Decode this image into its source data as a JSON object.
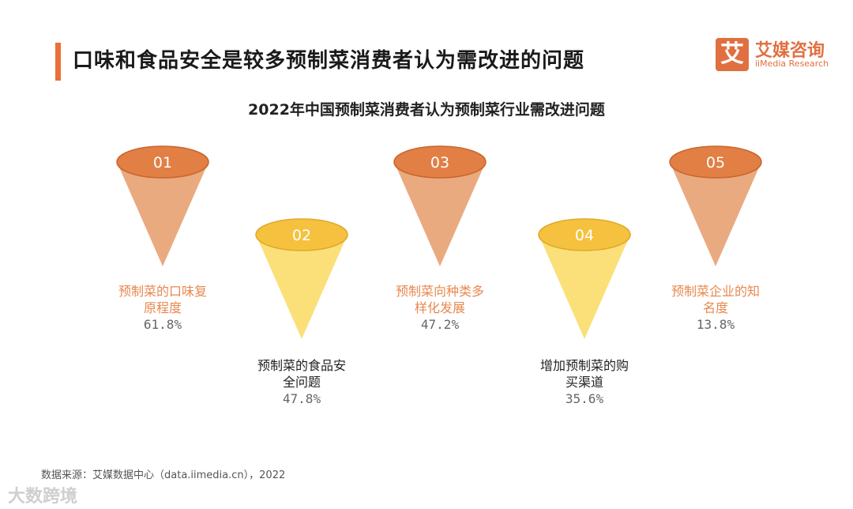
{
  "header": {
    "title": "口味和食品安全是较多预制菜消费者认为需改进的问题"
  },
  "logo": {
    "mark": "艾",
    "name_cn": "艾媒咨询",
    "name_en": "iiMedia Research"
  },
  "chart_data": {
    "type": "funnel-cones",
    "title": "2022年中国预制菜消费者认为预制菜行业需改进问题",
    "unit": "%",
    "items": [
      {
        "index": "01",
        "label_lines": [
          "预制菜的口味复",
          "原程度"
        ],
        "value": 61.8,
        "value_label": "61.8%"
      },
      {
        "index": "02",
        "label_lines": [
          "预制菜的食品安",
          "全问题"
        ],
        "value": 47.8,
        "value_label": "47.8%"
      },
      {
        "index": "03",
        "label_lines": [
          "预制菜向种类多",
          "样化发展"
        ],
        "value": 47.2,
        "value_label": "47.2%"
      },
      {
        "index": "04",
        "label_lines": [
          "增加预制菜的购",
          "买渠道"
        ],
        "value": 35.6,
        "value_label": "35.6%"
      },
      {
        "index": "05",
        "label_lines": [
          "预制菜企业的知",
          "名度"
        ],
        "value": 13.8,
        "value_label": "13.8%"
      }
    ]
  },
  "colors": {
    "orange_cap": "#e17f45",
    "orange_cone": "#eaaa80",
    "orange_text": "#e8884f",
    "yellow_cap": "#f6c13e",
    "yellow_cone": "#fbe07a",
    "dark_text": "#222222",
    "value_text": "#666666"
  },
  "footer": {
    "source": "数据来源：艾媒数据中心（data.iimedia.cn），2022",
    "watermark": "大数跨境"
  }
}
